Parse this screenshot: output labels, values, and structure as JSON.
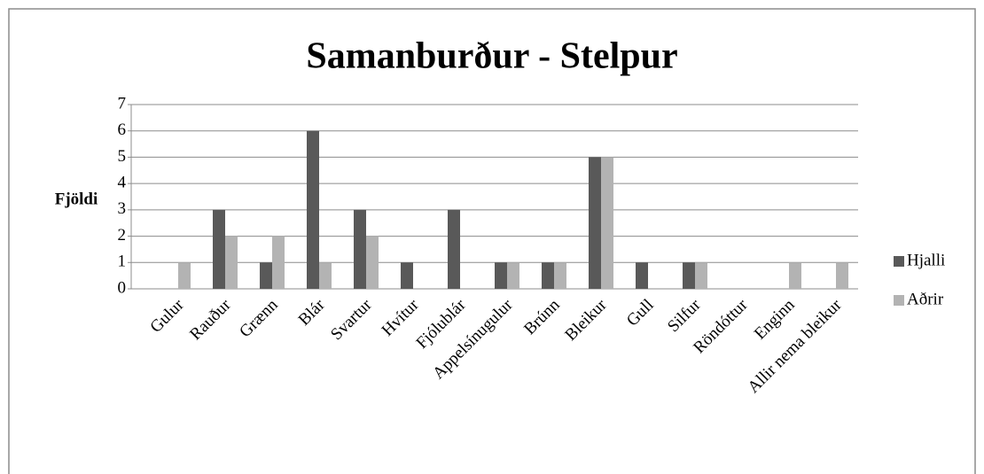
{
  "chart_data": {
    "type": "bar",
    "title": "Samanburður - Stelpur",
    "y_label": "Fjöldi",
    "categories": [
      "Gulur",
      "Rauður",
      "Grænn",
      "Blár",
      "Svartur",
      "Hvítur",
      "Fjólublár",
      "Appelsínugulur",
      "Brúnn",
      "Bleikur",
      "Gull",
      "Silfur",
      "Röndóttur",
      "Enginn",
      "Allir nema bleikur"
    ],
    "series": [
      {
        "name": "Hjalli",
        "color": "#595959",
        "values": [
          0,
          3,
          1,
          6,
          3,
          1,
          3,
          1,
          1,
          5,
          1,
          1,
          0,
          0,
          0
        ]
      },
      {
        "name": "Aðrir",
        "color": "#b3b3b3",
        "values": [
          1,
          2,
          2,
          1,
          2,
          0,
          0,
          1,
          1,
          5,
          0,
          1,
          0,
          1,
          1
        ]
      }
    ],
    "ylim": [
      0,
      7
    ],
    "yticks": [
      0,
      1,
      2,
      3,
      4,
      5,
      6,
      7
    ],
    "grid": true,
    "legend": "right"
  }
}
